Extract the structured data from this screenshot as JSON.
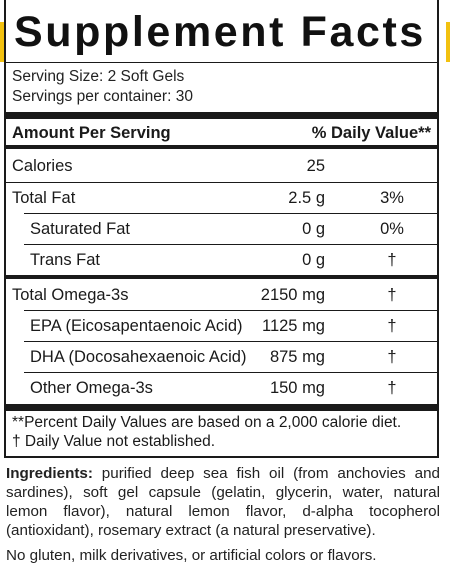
{
  "title": "Supplement Facts",
  "serving_size": "Serving Size: 2 Soft Gels",
  "servings_per_container": "Servings per container: 30",
  "header": {
    "amount": "Amount Per Serving",
    "daily_value": "% Daily Value**"
  },
  "rows": [
    {
      "name": "Calories",
      "amount": "25",
      "dv": ""
    },
    {
      "name": "Total Fat",
      "amount": "2.5 g",
      "dv": "3%"
    },
    {
      "name": "Saturated Fat",
      "amount": "0 g",
      "dv": "0%"
    },
    {
      "name": "Trans Fat",
      "amount": "0 g",
      "dv": "†"
    },
    {
      "name": "Total Omega-3s",
      "amount": "2150 mg",
      "dv": "†"
    },
    {
      "name": "EPA (Eicosapentaenoic Acid)",
      "amount": "1125 mg",
      "dv": "†"
    },
    {
      "name": "DHA (Docosahexaenoic Acid)",
      "amount": "875 mg",
      "dv": "†"
    },
    {
      "name": "Other Omega-3s",
      "amount": "150 mg",
      "dv": "†"
    }
  ],
  "footnotes": [
    "**Percent Daily Values are based on a 2,000 calorie diet.",
    "† Daily Value not established."
  ],
  "ingredients_label": "Ingredients:",
  "ingredients_text": " purified deep sea fish oil (from anchovies and sardines), soft gel capsule (gelatin, glycerin, water, natural lemon flavor), natural lemon flavor, d-alpha tocopherol (antioxidant), rosemary extract (a natural preservative).",
  "free_from": "No gluten, milk derivatives, or artificial colors or flavors.",
  "colors": {
    "accent": "#f2c10f",
    "text": "#1a1a1a"
  }
}
